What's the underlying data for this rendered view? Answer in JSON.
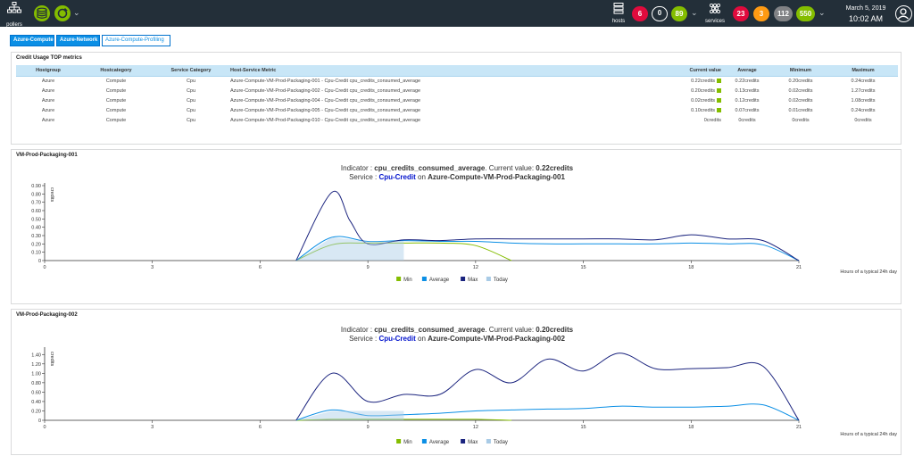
{
  "topbar": {
    "pollers_label": "pollers",
    "hosts_label": "hosts",
    "services_label": "services",
    "hosts_counts": {
      "down": "6",
      "unreachable": "0",
      "up": "89"
    },
    "services_counts": {
      "critical": "23",
      "warning": "3",
      "unknown": "112",
      "ok": "550"
    },
    "date": "March 5, 2019",
    "time": "10:02 AM"
  },
  "tabs": [
    {
      "label": "Azure-Compute",
      "active": true
    },
    {
      "label": "Azure-Network",
      "active": true
    },
    {
      "label": "Azure-Compute-Profiling",
      "active": false
    }
  ],
  "metrics_panel": {
    "title": "Credit Usage TOP metrics",
    "columns": [
      "Hostgroup",
      "Hostcategory",
      "Service Category",
      "Host-Service Metric",
      "Current value",
      "Average",
      "Minimum",
      "Maximum"
    ],
    "rows": [
      [
        "Azure",
        "Compute",
        "Cpu",
        "Azure-Compute-VM-Prod-Packaging-001 - Cpu-Credit cpu_credits_consumed_average",
        "0.22credits",
        "0.22credits",
        "0.20credits",
        "0.24credits"
      ],
      [
        "Azure",
        "Compute",
        "Cpu",
        "Azure-Compute-VM-Prod-Packaging-002 - Cpu-Credit cpu_credits_consumed_average",
        "0.20credits",
        "0.13credits",
        "0.02credits",
        "1.27credits"
      ],
      [
        "Azure",
        "Compute",
        "Cpu",
        "Azure-Compute-VM-Prod-Packaging-004 - Cpu-Credit cpu_credits_consumed_average",
        "0.02credits",
        "0.12credits",
        "0.02credits",
        "1.08credits"
      ],
      [
        "Azure",
        "Compute",
        "Cpu",
        "Azure-Compute-VM-Prod-Packaging-005 - Cpu-Credit cpu_credits_consumed_average",
        "0.10credits",
        "0.07credits",
        "0.01credits",
        "0.24credits"
      ],
      [
        "Azure",
        "Compute",
        "Cpu",
        "Azure-Compute-VM-Prod-Packaging-010 - Cpu-Credit cpu_credits_consumed_average",
        "0credits",
        "0credits",
        "0credits",
        "0credits"
      ]
    ]
  },
  "charts": [
    {
      "panel_title": "VM-Prod-Packaging-001",
      "indicator_label": "Indicator : ",
      "indicator_name": "cpu_credits_consumed_average",
      "current_label": ". Current value: ",
      "current_value": "0.22credits",
      "service_label": "Service : ",
      "service_name": "Cpu-Credit",
      "on_label": " on ",
      "host_name": "Azure-Compute-VM-Prod-Packaging-001"
    },
    {
      "panel_title": "VM-Prod-Packaging-002",
      "indicator_label": "Indicator : ",
      "indicator_name": "cpu_credits_consumed_average",
      "current_label": ". Current value: ",
      "current_value": "0.20credits",
      "service_label": "Service : ",
      "service_name": "Cpu-Credit",
      "on_label": " on ",
      "host_name": "Azure-Compute-VM-Prod-Packaging-002"
    }
  ],
  "chart_data": [
    {
      "type": "line",
      "ylabel": "credits",
      "xlabel": "Hours of a typical 24h day",
      "xlim": [
        0,
        21
      ],
      "xticks": [
        0,
        3,
        6,
        9,
        12,
        15,
        18,
        21
      ],
      "ylim": [
        0,
        0.9
      ],
      "yticks": [
        "0",
        "0.10",
        "0.20",
        "0.30",
        "0.40",
        "0.50",
        "0.60",
        "0.70",
        "0.80",
        "0.90"
      ],
      "colors": {
        "Min": "#84bd00",
        "Average": "#0b8fe5",
        "Max": "#1a237e",
        "Today": "#a9cbe6"
      },
      "series": [
        {
          "name": "Min",
          "x": [
            7,
            8,
            9,
            10,
            11,
            12,
            13
          ],
          "values": [
            0,
            0.19,
            0.21,
            0.21,
            0.21,
            0.18,
            0
          ]
        },
        {
          "name": "Average",
          "x": [
            7,
            8,
            9,
            10,
            11,
            12,
            13,
            14,
            15,
            16,
            17,
            18,
            19,
            20,
            21
          ],
          "values": [
            0,
            0.28,
            0.23,
            0.24,
            0.23,
            0.23,
            0.21,
            0.2,
            0.2,
            0.2,
            0.2,
            0.21,
            0.2,
            0.19,
            0
          ]
        },
        {
          "name": "Max",
          "x": [
            7,
            8,
            8.5,
            9,
            10,
            11,
            12,
            13,
            14,
            15,
            16,
            17,
            18,
            19,
            20,
            21
          ],
          "values": [
            0,
            0.82,
            0.48,
            0.2,
            0.25,
            0.24,
            0.26,
            0.26,
            0.26,
            0.26,
            0.26,
            0.25,
            0.31,
            0.26,
            0.24,
            0
          ]
        },
        {
          "name": "Today",
          "x": [
            7,
            8,
            9,
            10
          ],
          "values": [
            0,
            0.28,
            0.23,
            0.23
          ]
        }
      ]
    },
    {
      "type": "line",
      "ylabel": "credits",
      "xlabel": "Hours of a typical 24h day",
      "xlim": [
        0,
        21
      ],
      "xticks": [
        0,
        3,
        6,
        9,
        12,
        15,
        18,
        21
      ],
      "ylim": [
        0,
        1.5
      ],
      "yticks": [
        "0",
        "0.20",
        "0.40",
        "0.60",
        "0.80",
        "1.00",
        "1.20",
        "1.40"
      ],
      "colors": {
        "Min": "#84bd00",
        "Average": "#0b8fe5",
        "Max": "#1a237e",
        "Today": "#a9cbe6"
      },
      "series": [
        {
          "name": "Min",
          "x": [
            7,
            8,
            9,
            10,
            11,
            12,
            13
          ],
          "values": [
            0,
            0.02,
            0.02,
            0.02,
            0.02,
            0.02,
            0
          ]
        },
        {
          "name": "Average",
          "x": [
            7,
            8,
            9,
            10,
            11,
            12,
            13,
            14,
            15,
            16,
            17,
            18,
            19,
            20,
            21
          ],
          "values": [
            0,
            0.22,
            0.1,
            0.12,
            0.15,
            0.2,
            0.22,
            0.24,
            0.25,
            0.3,
            0.28,
            0.28,
            0.3,
            0.33,
            0
          ]
        },
        {
          "name": "Max",
          "x": [
            7,
            8,
            9,
            10,
            11,
            12,
            13,
            14,
            15,
            16,
            17,
            18,
            19,
            20,
            21
          ],
          "values": [
            0,
            1.0,
            0.4,
            0.55,
            0.55,
            1.08,
            0.8,
            1.3,
            1.05,
            1.43,
            1.1,
            1.1,
            1.12,
            1.15,
            0
          ]
        },
        {
          "name": "Today",
          "x": [
            7,
            8,
            9,
            10
          ],
          "values": [
            0,
            0.2,
            0.2,
            0.2
          ]
        }
      ]
    }
  ]
}
